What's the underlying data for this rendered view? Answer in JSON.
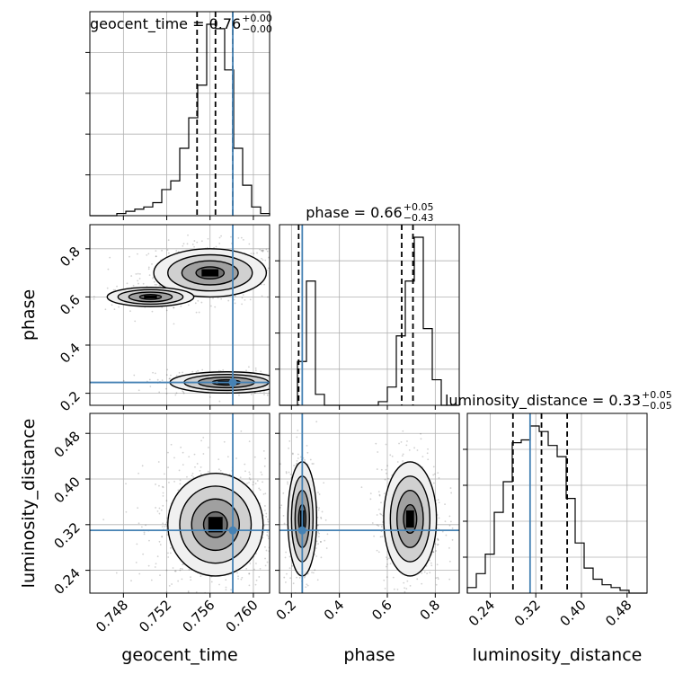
{
  "chart_data": {
    "type": "corner",
    "parameters": [
      "geocent_time",
      "phase",
      "luminosity_distance"
    ],
    "axis_labels": {
      "geocent_time": "geocent_time",
      "phase": "phase",
      "luminosity_distance": "luminosity_distance"
    },
    "ranges": {
      "geocent_time": [
        0.7449,
        0.7615
      ],
      "phase": [
        0.15,
        0.9
      ],
      "luminosity_distance": [
        0.2,
        0.515
      ]
    },
    "ticks": {
      "geocent_time": [
        "0.748",
        "0.752",
        "0.756",
        "0.760"
      ],
      "phase": [
        "0.2",
        "0.4",
        "0.6",
        "0.8"
      ],
      "luminosity_distance": [
        "0.24",
        "0.32",
        "0.40",
        "0.48"
      ]
    },
    "titles": {
      "geocent_time": {
        "text": "geocent_time = 0.76",
        "plus": "+0.00",
        "minus": "−0.00"
      },
      "phase": {
        "text": "phase = 0.66",
        "plus": "+0.05",
        "minus": "−0.43"
      },
      "luminosity_distance": {
        "text": "luminosity_distance = 0.33",
        "plus": "+0.05",
        "minus": "−0.05"
      }
    },
    "truths": {
      "geocent_time": 0.7581,
      "phase": 0.245,
      "luminosity_distance": 0.31
    },
    "quantiles": {
      "geocent_time": [
        0.7548,
        0.7565,
        0.7581
      ],
      "phase": [
        0.23,
        0.66,
        0.707
      ],
      "luminosity_distance": [
        0.28,
        0.33,
        0.375
      ]
    },
    "histograms": {
      "geocent_time": {
        "edges": [
          0.7449,
          0.74573,
          0.74656,
          0.74739,
          0.74822,
          0.74905,
          0.74988,
          0.75071,
          0.75154,
          0.75237,
          0.7532,
          0.75403,
          0.75486,
          0.75569,
          0.75652,
          0.75735,
          0.75818,
          0.75901,
          0.75984,
          0.76067,
          0.7615
        ],
        "counts": [
          0,
          0,
          0,
          1,
          2,
          3,
          4,
          6,
          12,
          16,
          31,
          45,
          60,
          88,
          86,
          67,
          31,
          14,
          4,
          1
        ]
      },
      "phase": {
        "edges": [
          0.15,
          0.1875,
          0.225,
          0.2625,
          0.3,
          0.3375,
          0.375,
          0.4125,
          0.45,
          0.4875,
          0.525,
          0.5625,
          0.6,
          0.6375,
          0.675,
          0.7125,
          0.75,
          0.7875,
          0.825,
          0.8625,
          0.9
        ],
        "counts": [
          0,
          0,
          12,
          34,
          3,
          0,
          0,
          0,
          0,
          0,
          0,
          1,
          5,
          19,
          34,
          46,
          21,
          7,
          0,
          0
        ]
      },
      "luminosity_distance": {
        "edges": [
          0.2,
          0.21575,
          0.2315,
          0.24725,
          0.263,
          0.27875,
          0.2945,
          0.31025,
          0.326,
          0.34175,
          0.3575,
          0.37325,
          0.389,
          0.40475,
          0.4205,
          0.43625,
          0.452,
          0.46775,
          0.4835,
          0.49925,
          0.515
        ],
        "counts": [
          2,
          7,
          14,
          29,
          40,
          54,
          55,
          60,
          58,
          53,
          49,
          34,
          18,
          9,
          5,
          3,
          2,
          1,
          0,
          0
        ]
      }
    },
    "density_modes": [
      {
        "x": "geocent_time",
        "y": "phase",
        "clusters": [
          {
            "cx": 0.756,
            "cy": 0.7,
            "sx": 0.0026,
            "sy": 0.05,
            "weight": 0.55
          },
          {
            "cx": 0.7505,
            "cy": 0.6,
            "sx": 0.002,
            "sy": 0.02,
            "weight": 0.12
          },
          {
            "cx": 0.7575,
            "cy": 0.245,
            "sx": 0.0026,
            "sy": 0.022,
            "weight": 0.33
          }
        ]
      },
      {
        "x": "geocent_time",
        "y": "luminosity_distance",
        "clusters": [
          {
            "cx": 0.7565,
            "cy": 0.32,
            "sx": 0.0022,
            "sy": 0.045,
            "weight": 1.0
          }
        ]
      },
      {
        "x": "phase",
        "y": "luminosity_distance",
        "clusters": [
          {
            "cx": 0.245,
            "cy": 0.33,
            "sx": 0.03,
            "sy": 0.05,
            "weight": 0.4
          },
          {
            "cx": 0.695,
            "cy": 0.33,
            "sx": 0.055,
            "sy": 0.05,
            "weight": 0.6
          }
        ]
      }
    ],
    "colors": {
      "truth": "#4682b4",
      "lines": "#000000",
      "grid": "#b0b0b0"
    }
  }
}
